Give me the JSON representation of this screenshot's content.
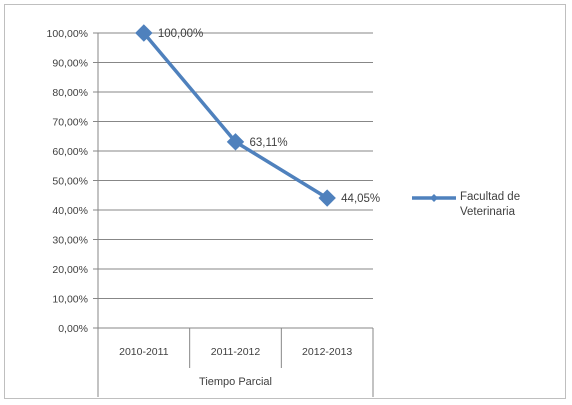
{
  "chart_data": {
    "type": "line",
    "categories": [
      "2010-2011",
      "2011-2012",
      "2012-2013"
    ],
    "series": [
      {
        "name": "Facultad de Veterinaria",
        "values": [
          100.0,
          63.11,
          44.05
        ],
        "color": "#4f81bd"
      }
    ],
    "data_labels": [
      "100,00%",
      "63,11%",
      "44,05%"
    ],
    "y_ticks": [
      "0,00%",
      "10,00%",
      "20,00%",
      "30,00%",
      "40,00%",
      "50,00%",
      "60,00%",
      "70,00%",
      "80,00%",
      "90,00%",
      "100,00%"
    ],
    "ylim": [
      0,
      100
    ],
    "xlabel": "Tiempo Parcial",
    "ylabel": "",
    "title": "",
    "grid": true,
    "legend_position": "right",
    "legend_lines": [
      "Facultad de",
      "Veterinaria"
    ],
    "marker": "diamond"
  }
}
